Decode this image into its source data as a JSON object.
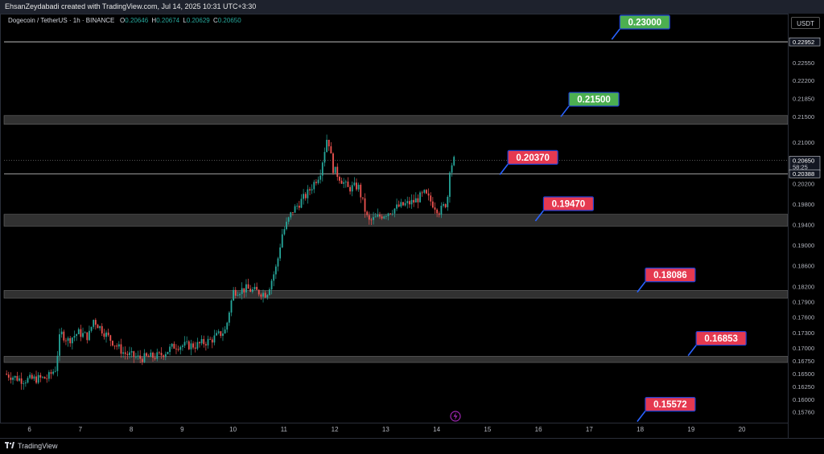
{
  "header": {
    "attribution": "EhsanZeydabadi created with TradingView.com, Jul 14, 2025 10:31 UTC+3:30"
  },
  "legend": {
    "symbol": "Dogecoin / TetherUS · 1h · BINANCE",
    "open_label": "O",
    "open": "0.20646",
    "high_label": "H",
    "high": "0.20674",
    "low_label": "L",
    "low": "0.20629",
    "close_label": "C",
    "close": "0.20650"
  },
  "currency": "USDT",
  "footer": {
    "brand": "TradingView"
  },
  "chart_data": {
    "type": "candlestick",
    "symbol": "Dogecoin / TetherUS",
    "interval": "1h",
    "exchange": "BINANCE",
    "ylim": [
      0.1555,
      0.235
    ],
    "y_ticks": [
      0.2255,
      0.222,
      0.2185,
      0.215,
      0.21,
      0.202,
      0.198,
      0.194,
      0.19,
      0.186,
      0.182,
      0.179,
      0.176,
      0.173,
      0.17,
      0.1675,
      0.165,
      0.1625,
      0.16,
      0.1576
    ],
    "y_tick_labels": [
      "0.22550",
      "0.22200",
      "0.21850",
      "0.21500",
      "0.21000",
      "0.20200",
      "0.19800",
      "0.19400",
      "0.19000",
      "0.18600",
      "0.18200",
      "0.17900",
      "0.17600",
      "0.17300",
      "0.17000",
      "0.16750",
      "0.16500",
      "0.16250",
      "0.16000",
      "0.15760"
    ],
    "x_ticks": [
      "6",
      "7",
      "8",
      "9",
      "10",
      "11",
      "12",
      "13",
      "14",
      "15",
      "16",
      "17",
      "18",
      "19",
      "20"
    ],
    "x_range_days": [
      5.5,
      20.9
    ],
    "axis_markers": [
      {
        "value": 0.22952,
        "label": "0.22952",
        "style": "dark"
      },
      {
        "value": 0.2065,
        "label": "0.20650",
        "sub": "58:25",
        "style": "dark"
      },
      {
        "value": 0.20388,
        "label": "0.20388",
        "style": "dark"
      }
    ],
    "horizontal_lines": [
      {
        "value": 0.22952
      },
      {
        "value": 0.20388
      }
    ],
    "zones": [
      {
        "low": 0.2135,
        "high": 0.2152
      },
      {
        "low": 0.1937,
        "high": 0.196
      },
      {
        "low": 0.1797,
        "high": 0.1812
      },
      {
        "low": 0.1672,
        "high": 0.1684
      }
    ],
    "annotations": [
      {
        "label": "0.23000",
        "level": 0.23,
        "color": "#4caf50",
        "day": 17.6
      },
      {
        "label": "0.21500",
        "level": 0.215,
        "color": "#4caf50",
        "day": 16.6
      },
      {
        "label": "0.20370",
        "level": 0.2037,
        "color": "#e53950",
        "day": 15.4
      },
      {
        "label": "0.19470",
        "level": 0.1947,
        "color": "#e53950",
        "day": 16.1
      },
      {
        "label": "0.18086",
        "level": 0.18086,
        "color": "#e53950",
        "day": 18.1
      },
      {
        "label": "0.16853",
        "level": 0.16853,
        "color": "#e53950",
        "day": 19.1
      },
      {
        "label": "0.15572",
        "level": 0.15572,
        "color": "#e53950",
        "day": 18.1
      }
    ],
    "waypoints": [
      [
        5.55,
        0.165
      ],
      [
        5.9,
        0.1638
      ],
      [
        6.4,
        0.1642
      ],
      [
        6.55,
        0.166
      ],
      [
        6.65,
        0.173
      ],
      [
        6.8,
        0.1715
      ],
      [
        7.0,
        0.173
      ],
      [
        7.2,
        0.1722
      ],
      [
        7.3,
        0.1755
      ],
      [
        7.6,
        0.172
      ],
      [
        7.9,
        0.169
      ],
      [
        8.2,
        0.168
      ],
      [
        8.6,
        0.1685
      ],
      [
        8.9,
        0.1705
      ],
      [
        9.3,
        0.1705
      ],
      [
        9.6,
        0.1715
      ],
      [
        9.9,
        0.1735
      ],
      [
        9.95,
        0.1765
      ],
      [
        10.05,
        0.181
      ],
      [
        10.3,
        0.1815
      ],
      [
        10.7,
        0.1805
      ],
      [
        10.9,
        0.186
      ],
      [
        11.0,
        0.192
      ],
      [
        11.2,
        0.1965
      ],
      [
        11.5,
        0.2
      ],
      [
        11.75,
        0.204
      ],
      [
        11.9,
        0.2115
      ],
      [
        12.0,
        0.205
      ],
      [
        12.3,
        0.201
      ],
      [
        12.5,
        0.2015
      ],
      [
        12.7,
        0.1945
      ],
      [
        12.9,
        0.1955
      ],
      [
        13.3,
        0.1975
      ],
      [
        13.6,
        0.1985
      ],
      [
        13.8,
        0.2
      ],
      [
        14.1,
        0.1965
      ],
      [
        14.25,
        0.1985
      ],
      [
        14.3,
        0.205
      ],
      [
        14.38,
        0.2065
      ]
    ],
    "up_color": "#26a69a",
    "down_color": "#ef5350"
  }
}
